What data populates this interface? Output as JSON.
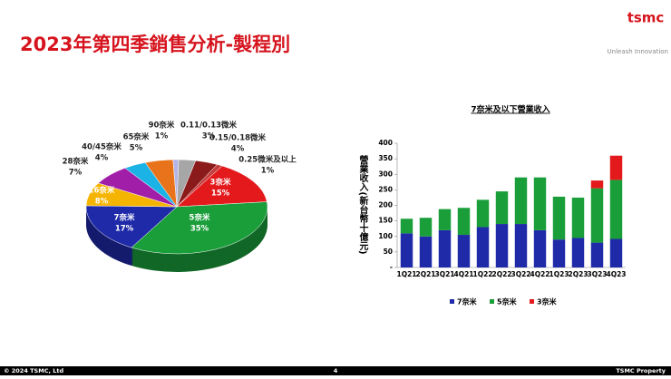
{
  "header": {
    "title": "2023年第四季銷售分析-製程別",
    "logo": "tsmc",
    "tagline": "Unleash Innovation"
  },
  "chart_data": [
    {
      "type": "pie",
      "categories": [
        "3奈米",
        "5奈米",
        "7奈米",
        "16奈米",
        "28奈米",
        "40/45奈米",
        "65奈米",
        "90奈米",
        "0.11/0.13微米",
        "0.15/0.18微米",
        "0.25微米及以上"
      ],
      "values": [
        15,
        35,
        17,
        8,
        7,
        4,
        5,
        1,
        3,
        4,
        1
      ],
      "value_labels": [
        "15%",
        "35%",
        "17%",
        "8%",
        "7%",
        "4%",
        "5%",
        "1%",
        "3%",
        "4%",
        "1%"
      ],
      "colors": [
        "#e3191c",
        "#1a9e3a",
        "#1f2aa8",
        "#f5b400",
        "#a11fa8",
        "#1bb2e6",
        "#e8731a",
        "#b4b4e6",
        "#a6a6a6",
        "#8b1a1a",
        "#c43c3c"
      ]
    },
    {
      "type": "stacked-bar",
      "title": "7奈米及以下營業收入",
      "y_label": "營業收入(新台幣十億元)",
      "categories": [
        "1Q21",
        "2Q21",
        "3Q21",
        "4Q21",
        "1Q22",
        "2Q22",
        "3Q22",
        "4Q22",
        "1Q23",
        "2Q23",
        "3Q23",
        "4Q23"
      ],
      "series": [
        {
          "name": "7奈米",
          "color": "#1f2aa8",
          "values": [
            110,
            100,
            120,
            105,
            130,
            140,
            140,
            120,
            90,
            95,
            80,
            92
          ]
        },
        {
          "name": "5奈米",
          "color": "#1a9e3a",
          "values": [
            47,
            60,
            68,
            87,
            88,
            105,
            150,
            170,
            138,
            130,
            175,
            190
          ]
        },
        {
          "name": "3奈米",
          "color": "#e3191c",
          "values": [
            null,
            null,
            null,
            null,
            null,
            null,
            null,
            null,
            null,
            null,
            25,
            78
          ]
        }
      ],
      "ylim": [
        0,
        400
      ],
      "yticks": [
        {
          "value": 0,
          "label": "-"
        },
        50,
        100,
        150,
        200,
        250,
        300,
        350,
        400
      ]
    }
  ],
  "footer": {
    "copyright": "© 2024 TSMC, Ltd",
    "page": "4",
    "property": "TSMC Property"
  }
}
